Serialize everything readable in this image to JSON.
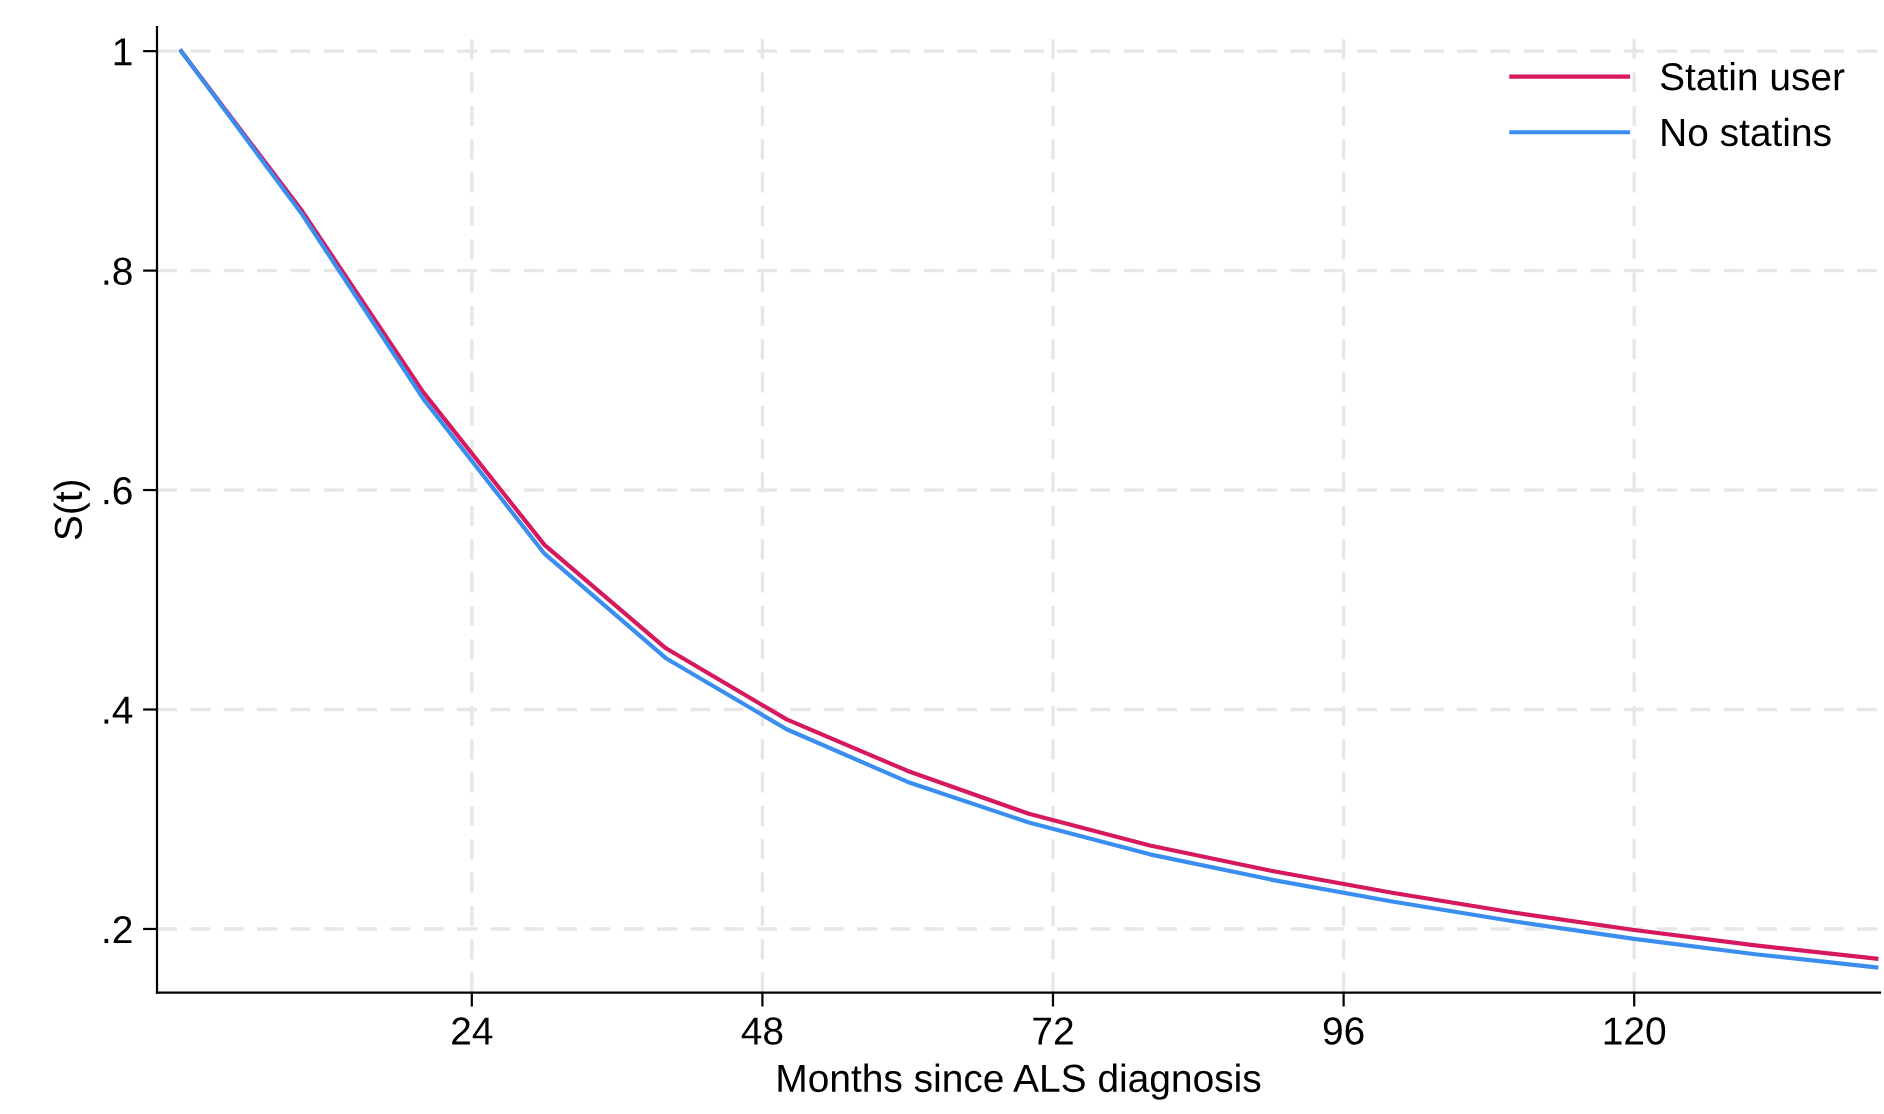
{
  "chart_data": {
    "type": "line",
    "xlabel": "Months since ALS diagnosis",
    "ylabel": "S(t)",
    "x": [
      0,
      10,
      20,
      30,
      40,
      50,
      60,
      70,
      80,
      90,
      100,
      110,
      120,
      130,
      140
    ],
    "series": [
      {
        "name": "Statin user",
        "color": "#d6185e",
        "values": [
          1,
          0.854,
          0.689,
          0.55,
          0.456,
          0.391,
          0.344,
          0.305,
          0.276,
          0.253,
          0.233,
          0.215,
          0.199,
          0.185,
          0.173
        ]
      },
      {
        "name": "No statins",
        "color": "#3a8ef0",
        "values": [
          1,
          0.851,
          0.683,
          0.542,
          0.447,
          0.382,
          0.334,
          0.297,
          0.268,
          0.245,
          0.225,
          0.207,
          0.191,
          0.177,
          0.165
        ]
      }
    ],
    "xlim": [
      -2,
      140.3
    ],
    "ylim": [
      0.142,
      1.022
    ],
    "xticks": [
      24,
      48,
      72,
      96,
      120
    ],
    "yticks": [
      {
        "value": 0.2,
        "label": ".2"
      },
      {
        "value": 0.4,
        "label": ".4"
      },
      {
        "value": 0.6,
        "label": ".6"
      },
      {
        "value": 0.8,
        "label": ".8"
      },
      1
    ],
    "grid": true,
    "legend": "top right",
    "line_style": "solid",
    "marker": "none"
  }
}
